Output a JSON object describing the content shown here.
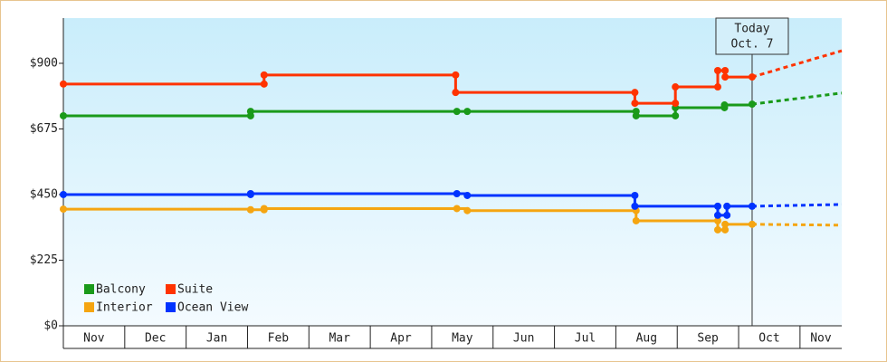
{
  "chart_data": {
    "type": "step-line",
    "categories": [
      "Nov",
      "Dec",
      "Jan",
      "Feb",
      "Mar",
      "Apr",
      "May",
      "Jun",
      "Jul",
      "Aug",
      "Sep",
      "Oct",
      "Nov"
    ],
    "xlim": [
      0,
      12.68
    ],
    "ylim": [
      0,
      1055
    ],
    "yticks": [
      {
        "value": 0,
        "label": "$0"
      },
      {
        "value": 225,
        "label": "$225"
      },
      {
        "value": 450,
        "label": "$450"
      },
      {
        "value": 675,
        "label": "$675"
      },
      {
        "value": 900,
        "label": "$900"
      }
    ],
    "grid": false,
    "legend": "lower left",
    "today": {
      "x": 11.22,
      "label": [
        "Today",
        "Oct. 7"
      ]
    },
    "series": [
      {
        "name": "Balcony",
        "color": "#1a9a1a",
        "x": [
          0,
          3.05,
          3.05,
          6.41,
          6.58,
          9.33,
          9.33,
          9.97,
          9.97,
          10.77,
          10.77,
          11.22
        ],
        "values": [
          720,
          720,
          735,
          735,
          735,
          735,
          720,
          720,
          748,
          748,
          757,
          760
        ],
        "projection_x": [
          12.68
        ],
        "projection_values": [
          798
        ]
      },
      {
        "name": "Suite",
        "color": "#ff3300",
        "x": [
          0,
          3.27,
          3.27,
          6.39,
          6.39,
          9.31,
          9.31,
          9.97,
          9.97,
          10.66,
          10.66,
          10.78,
          10.78,
          11.22
        ],
        "values": [
          829,
          829,
          860,
          860,
          800,
          800,
          763,
          763,
          819,
          819,
          875,
          875,
          853,
          853
        ],
        "projection_x": [
          12.68
        ],
        "projection_values": [
          943
        ]
      },
      {
        "name": "Interior",
        "color": "#f5a511",
        "x": [
          0,
          3.05,
          3.27,
          3.27,
          6.41,
          6.58,
          9.33,
          9.33,
          10.66,
          10.66,
          10.78,
          10.78,
          11.22
        ],
        "values": [
          400,
          398,
          398,
          402,
          402,
          395,
          395,
          360,
          360,
          329,
          329,
          348,
          348
        ],
        "projection_x": [
          12.68
        ],
        "projection_values": [
          345
        ]
      },
      {
        "name": "Ocean View",
        "color": "#0033ff",
        "x": [
          0,
          3.05,
          3.05,
          6.41,
          6.58,
          9.31,
          9.31,
          10.66,
          10.66,
          10.81,
          10.81,
          11.22
        ],
        "values": [
          450,
          450,
          453,
          453,
          447,
          447,
          410,
          410,
          379,
          379,
          410,
          410
        ],
        "projection_x": [
          12.68
        ],
        "projection_values": [
          416
        ]
      }
    ]
  }
}
